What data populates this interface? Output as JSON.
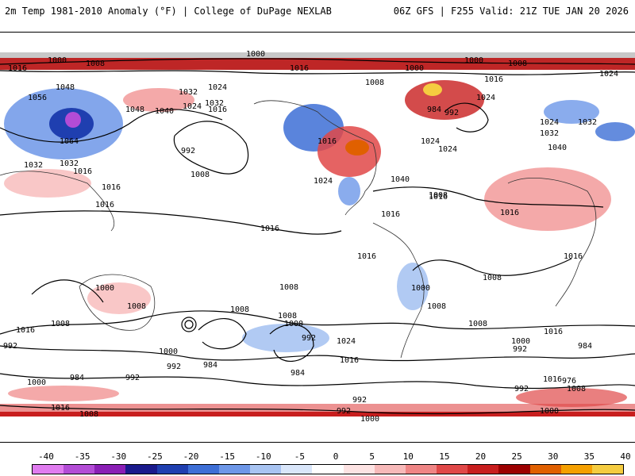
{
  "header": {
    "left": "2m Temp 1981-2010 Anomaly (°F) | College of DuPage NEXLAB",
    "right": "06Z GFS | F255 Valid: 21Z TUE JAN 20 2026"
  },
  "map": {
    "contour_labels": [
      "1000",
      "1008",
      "1016",
      "1008",
      "1000",
      "1008",
      "1016",
      "1024",
      "1000",
      "1008",
      "1016",
      "1048",
      "1056",
      "1048",
      "1064",
      "1040",
      "1024",
      "1032",
      "1016",
      "1040",
      "1032",
      "1024",
      "1032",
      "1024",
      "1040",
      "1016",
      "992",
      "1024",
      "1008",
      "1000",
      "984",
      "992",
      "1016",
      "1032",
      "1024",
      "1016",
      "1024",
      "1016",
      "1040",
      "1024",
      "1032",
      "1032",
      "1016",
      "1024",
      "1032",
      "1016",
      "1040",
      "1024",
      "1032",
      "1008",
      "1016",
      "1008",
      "1024",
      "1016",
      "1008",
      "1000",
      "1008",
      "1008",
      "1016",
      "1000",
      "1008",
      "1016",
      "1008",
      "1000",
      "1008",
      "992",
      "1000",
      "984",
      "992",
      "1024",
      "1016",
      "1008",
      "1000",
      "992",
      "1016",
      "1000",
      "992",
      "984",
      "976",
      "984",
      "992",
      "1000",
      "1008",
      "1016",
      "1008",
      "992",
      "1000",
      "1008",
      "1016",
      "992",
      "1000",
      "1024",
      "984",
      "992",
      "1000"
    ]
  },
  "colorbar": {
    "ticks": [
      "-40",
      "-35",
      "-30",
      "-25",
      "-20",
      "-15",
      "-10",
      "-5",
      "0",
      "5",
      "10",
      "15",
      "20",
      "25",
      "30",
      "35",
      "40"
    ],
    "colors": [
      "#e07cf0",
      "#b34cd6",
      "#8a1fb5",
      "#1a1a8c",
      "#1f3fb0",
      "#3d6fd6",
      "#6d97e8",
      "#a8c4f2",
      "#d9e6fa",
      "#ffffff",
      "#fde3e3",
      "#f7b9b9",
      "#ef8585",
      "#e04848",
      "#c81e1e",
      "#9c0000",
      "#e06000",
      "#f5a000",
      "#f5cc40"
    ]
  }
}
